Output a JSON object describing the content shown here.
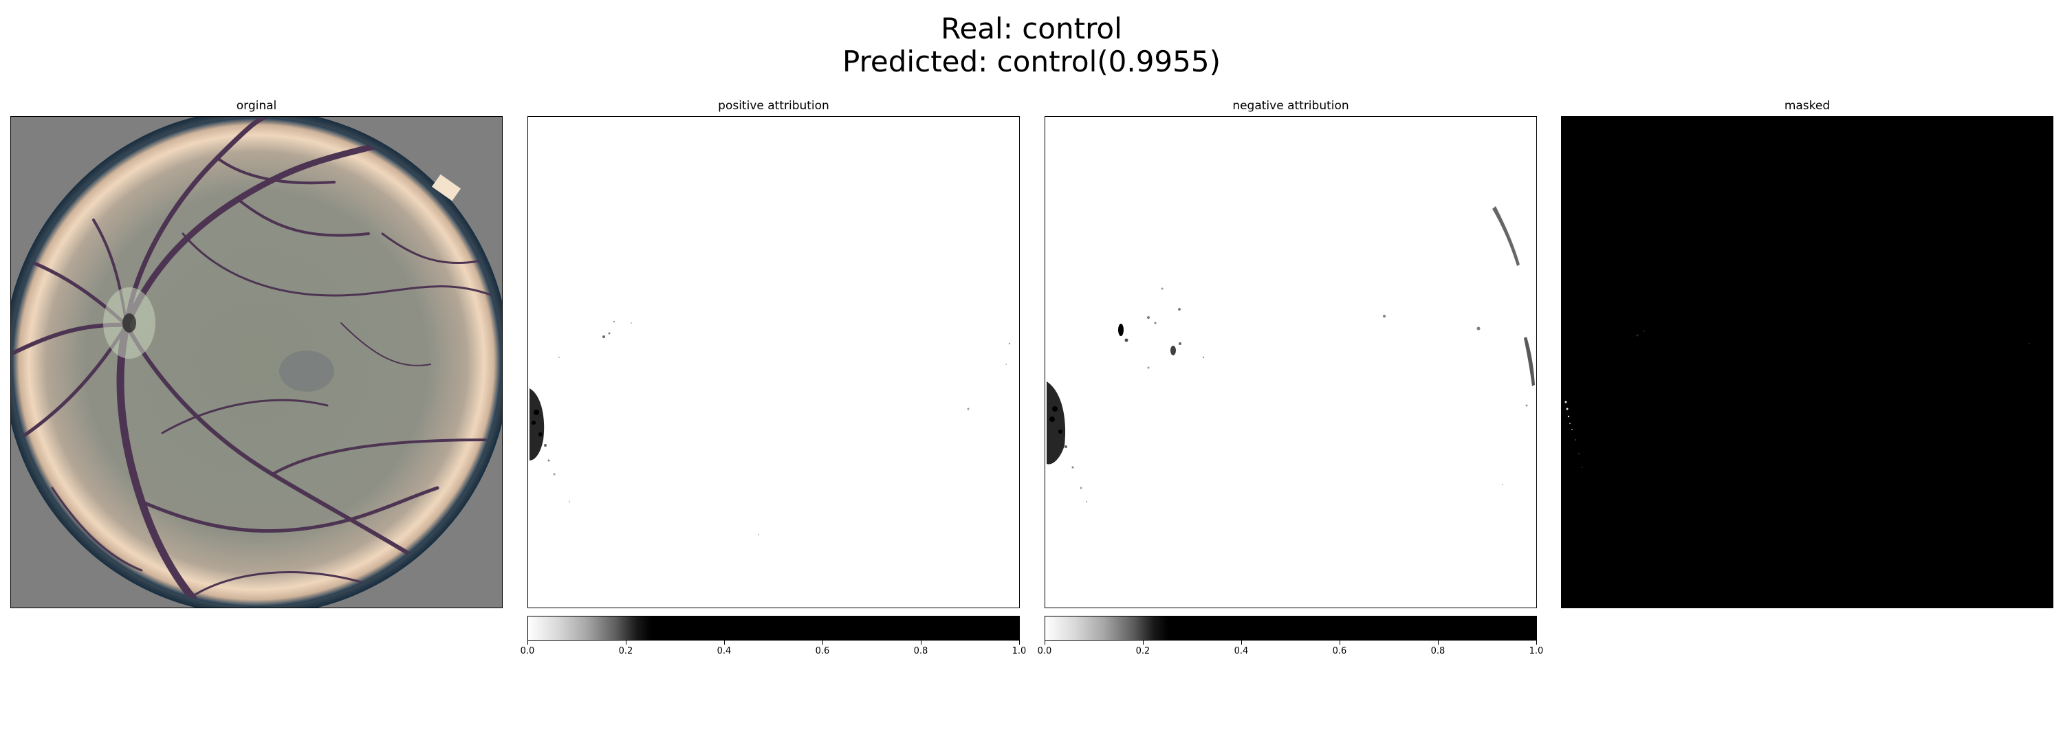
{
  "figure": {
    "title_line1": "Real: control",
    "title_line2": "Predicted: control(0.9955)"
  },
  "panels": {
    "original": {
      "title": "orginal"
    },
    "positive": {
      "title": "positive attribution"
    },
    "negative": {
      "title": "negative attribution"
    },
    "masked": {
      "title": "masked"
    }
  },
  "colorbar": {
    "range": [
      0.0,
      1.0
    ],
    "tick_labels": [
      "0.0",
      "0.2",
      "0.4",
      "0.6",
      "0.8",
      "1.0"
    ],
    "colormap": "white-to-black, saturating near 0.25"
  },
  "colors": {
    "fundus_background": "#7f7f7f",
    "fundus_rim": "#f0d8c0",
    "vessel": "#4a3050",
    "mask_background": "#000000"
  }
}
